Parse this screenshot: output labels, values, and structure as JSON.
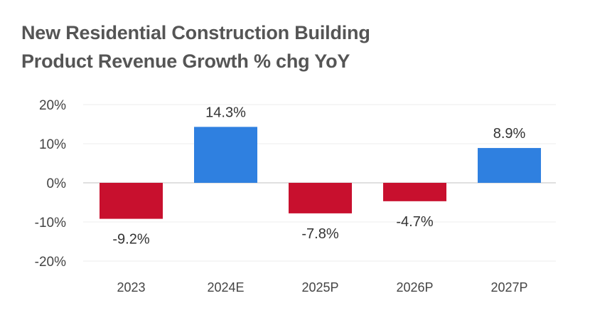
{
  "chart_data": {
    "type": "bar",
    "title": "New Residential Construction Building Product Revenue Growth % chg YoY",
    "title_lines": [
      "New Residential Construction Building",
      "Product Revenue Growth % chg YoY"
    ],
    "categories": [
      "2023",
      "2024E",
      "2025P",
      "2026P",
      "2027P"
    ],
    "values": [
      -9.2,
      14.3,
      -7.8,
      -4.7,
      8.9
    ],
    "data_labels": [
      "-9.2%",
      "14.3%",
      "-7.8%",
      "-4.7%",
      "8.9%"
    ],
    "xlabel": "",
    "ylabel": "",
    "ylim": [
      -20,
      20
    ],
    "yticks": [
      20,
      10,
      0,
      -10,
      -20
    ],
    "ytick_labels": [
      "20%",
      "10%",
      "0%",
      "-10%",
      "-20%"
    ],
    "grid": true,
    "colors": {
      "positive": "#2F80E0",
      "negative": "#C8102E"
    }
  }
}
